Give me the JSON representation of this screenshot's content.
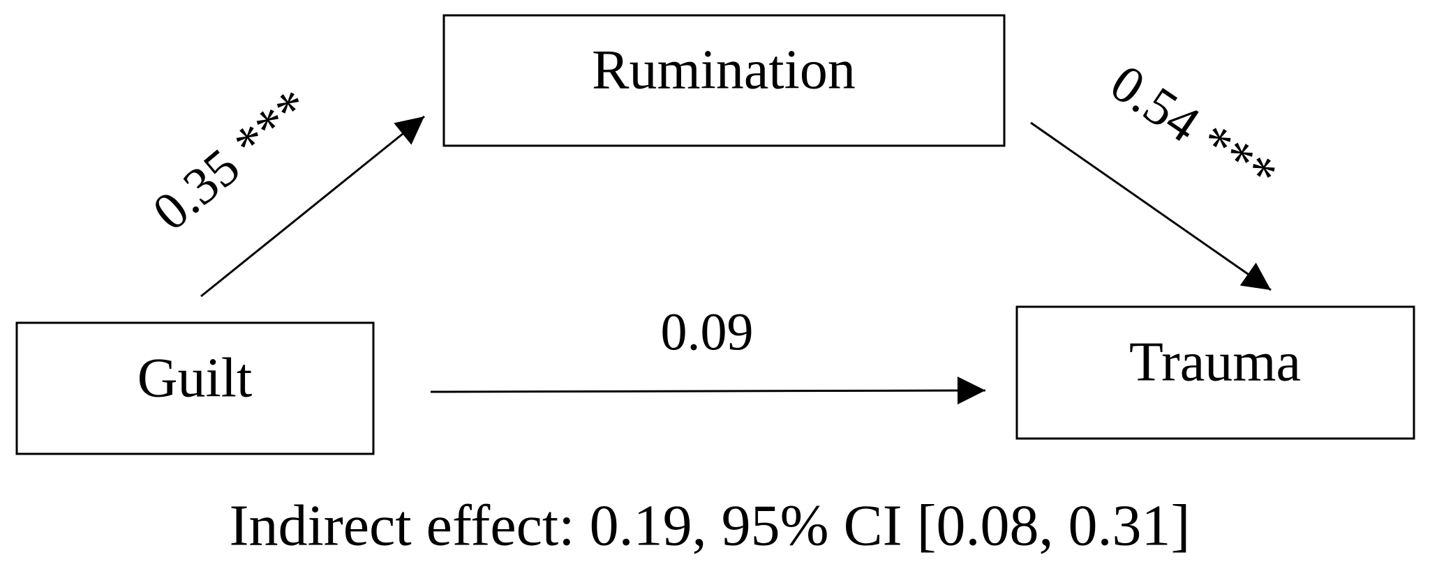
{
  "nodes": [
    {
      "label": "Rumination"
    },
    {
      "label": "Guilt"
    },
    {
      "label": "Trauma"
    }
  ],
  "edges": [
    {
      "label": "0.35 ***"
    },
    {
      "label": "0.54 ***"
    },
    {
      "label": "0.09"
    }
  ],
  "footer": "Indirect effect: 0.19, 95% CI [0.08, 0.31]"
}
